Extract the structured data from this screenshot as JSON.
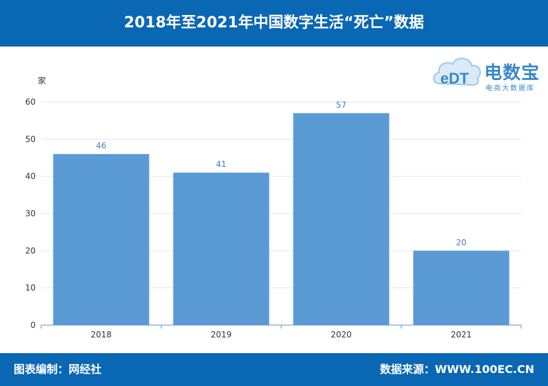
{
  "header": {
    "title": "2018年至2021年中国数字生活“死亡”数据"
  },
  "footer": {
    "left": "图表编制：网经社",
    "right": "数据来源：WWW.100EC.CN"
  },
  "logo": {
    "brand": "电数宝",
    "sub": "电商大数据库",
    "mark": "eDT"
  },
  "colors": {
    "header_bg": "#0a67b4",
    "bar": "#5b9bd5",
    "label": "#4a7fb5",
    "axis": "#5b8fc8"
  },
  "chart_data": {
    "type": "bar",
    "categories": [
      "2018",
      "2019",
      "2020",
      "2021"
    ],
    "values": [
      46,
      41,
      57,
      20
    ],
    "title": "",
    "xlabel": "",
    "ylabel": "家",
    "ylim": [
      0,
      60
    ],
    "yticks": [
      0,
      10,
      20,
      30,
      40,
      50,
      60
    ],
    "grid": true,
    "data_labels": true
  }
}
